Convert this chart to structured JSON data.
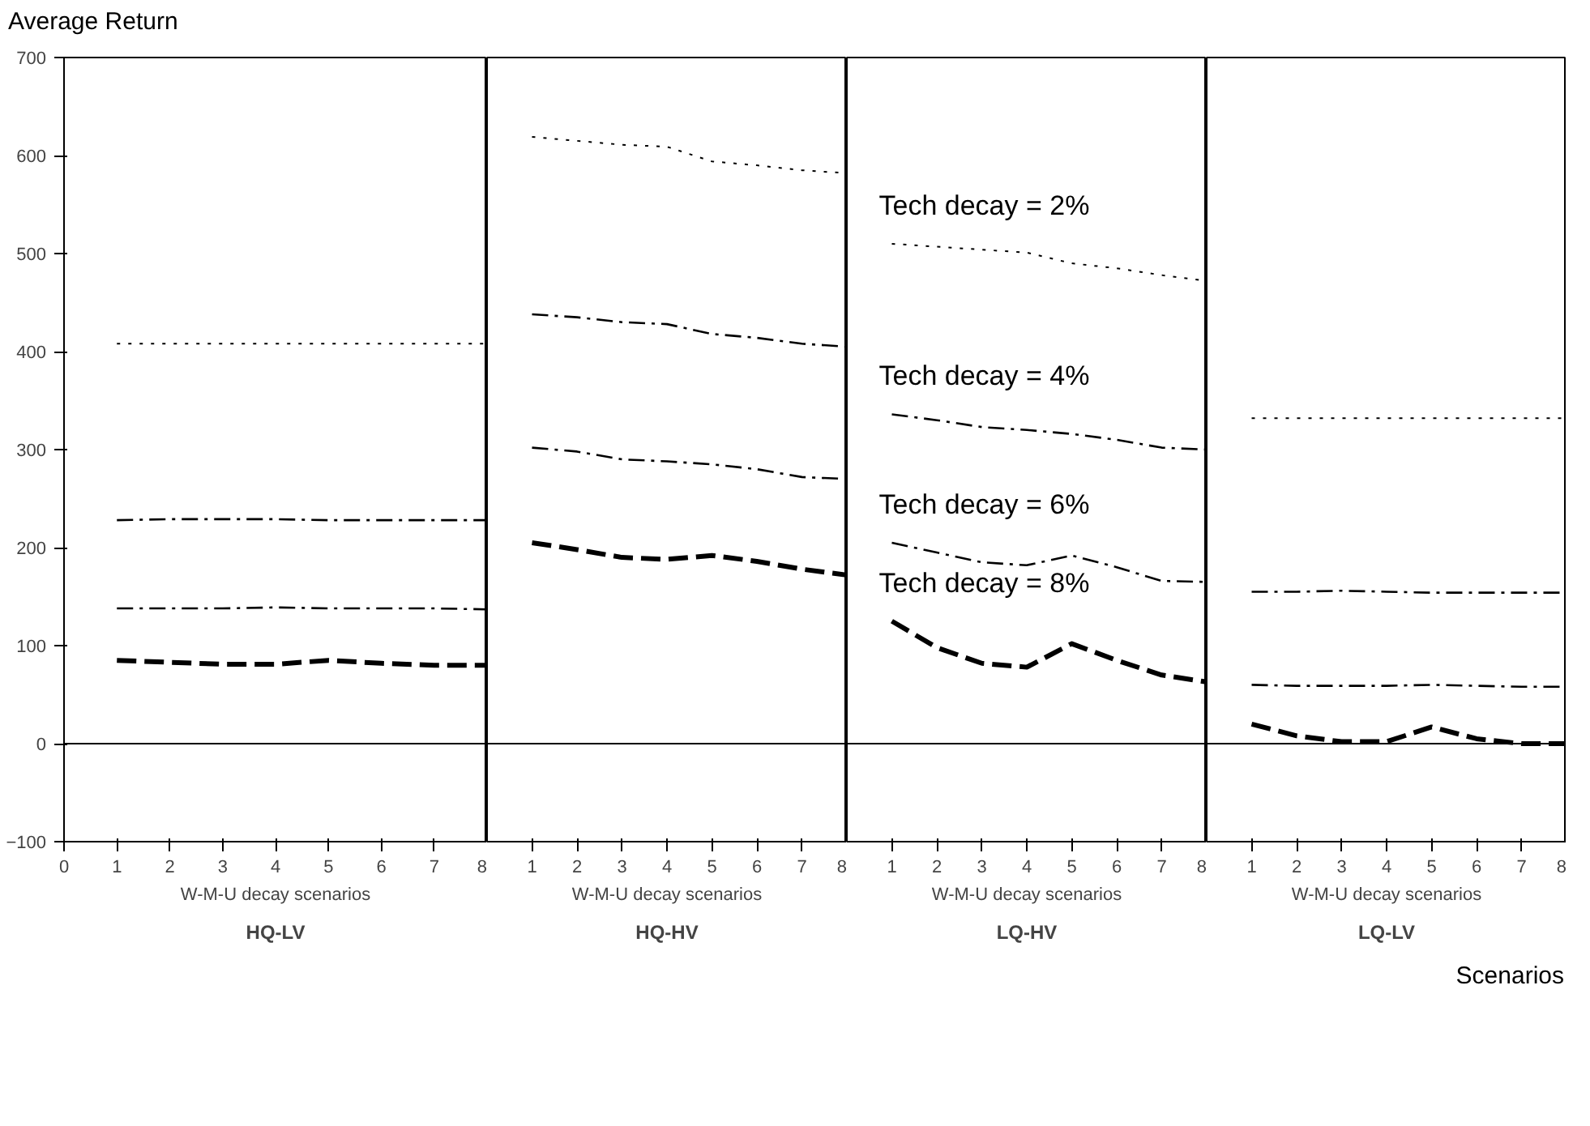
{
  "chart_data": [
    {
      "type": "line",
      "title": "HQ-LV",
      "xlabel": "W-M-U decay scenarios",
      "ylabel": "Average Return",
      "x": [
        1,
        2,
        3,
        4,
        5,
        6,
        7,
        8
      ],
      "xlim": [
        0,
        8
      ],
      "xticks": [
        0,
        1,
        2,
        3,
        4,
        5,
        6,
        7,
        8
      ],
      "ylim": [
        -100,
        700
      ],
      "yticks": [
        -100,
        0,
        100,
        200,
        300,
        400,
        500,
        600,
        700
      ],
      "grid": false,
      "ref_lines": [
        {
          "axis": "y",
          "value": 0
        }
      ],
      "series": [
        {
          "color": "#000000",
          "line_style": "dotted",
          "values": [
            408,
            408,
            408,
            408,
            408,
            408,
            408,
            408
          ]
        },
        {
          "color": "#000000",
          "line_style": "dashdot",
          "values": [
            228,
            229,
            229,
            229,
            228,
            228,
            228,
            228
          ]
        },
        {
          "color": "#000000",
          "line_style": "dashdot",
          "values": [
            138,
            138,
            138,
            139,
            138,
            138,
            138,
            137
          ]
        },
        {
          "color": "#000000",
          "line_style": "dashed",
          "values": [
            85,
            83,
            81,
            81,
            85,
            82,
            80,
            80
          ]
        }
      ]
    },
    {
      "type": "line",
      "title": "HQ-HV",
      "xlabel": "W-M-U decay scenarios",
      "x": [
        1,
        2,
        3,
        4,
        5,
        6,
        7,
        8
      ],
      "xlim": [
        0,
        8
      ],
      "xticks": [
        1,
        2,
        3,
        4,
        5,
        6,
        7,
        8
      ],
      "ylim": [
        -100,
        700
      ],
      "tick_labels": "x",
      "grid": false,
      "ref_lines": [
        {
          "axis": "y",
          "value": 0
        }
      ],
      "series": [
        {
          "color": "#000000",
          "line_style": "dotted",
          "values": [
            619,
            615,
            611,
            609,
            594,
            590,
            585,
            582
          ]
        },
        {
          "color": "#000000",
          "line_style": "dashdot",
          "values": [
            438,
            435,
            430,
            428,
            418,
            414,
            408,
            405
          ]
        },
        {
          "color": "#000000",
          "line_style": "dashdot",
          "values": [
            302,
            298,
            290,
            288,
            285,
            280,
            272,
            270
          ]
        },
        {
          "color": "#000000",
          "line_style": "dashed",
          "values": [
            205,
            198,
            190,
            188,
            192,
            186,
            178,
            172
          ]
        }
      ]
    },
    {
      "type": "line",
      "title": "LQ-HV",
      "xlabel": "W-M-U decay scenarios",
      "x": [
        1,
        2,
        3,
        4,
        5,
        6,
        7,
        8
      ],
      "xlim": [
        0,
        8
      ],
      "xticks": [
        1,
        2,
        3,
        4,
        5,
        6,
        7,
        8
      ],
      "ylim": [
        -100,
        700
      ],
      "tick_labels": "x",
      "grid": false,
      "ref_lines": [
        {
          "axis": "y",
          "value": 0
        }
      ],
      "series": [
        {
          "name": "Tech decay = 2%",
          "color": "#000000",
          "line_style": "dotted",
          "values": [
            510,
            507,
            504,
            501,
            490,
            485,
            478,
            472
          ]
        },
        {
          "name": "Tech decay = 4%",
          "color": "#000000",
          "line_style": "dashdot",
          "values": [
            336,
            330,
            323,
            320,
            316,
            310,
            302,
            300
          ]
        },
        {
          "name": "Tech decay = 6%",
          "color": "#000000",
          "line_style": "dashdot",
          "values": [
            205,
            195,
            185,
            182,
            192,
            180,
            166,
            165
          ]
        },
        {
          "name": "Tech decay = 8%",
          "color": "#000000",
          "line_style": "dashed",
          "values": [
            125,
            98,
            82,
            78,
            102,
            85,
            70,
            63
          ]
        }
      ]
    },
    {
      "type": "line",
      "title": "LQ-LV",
      "xlabel": "W-M-U decay scenarios",
      "x": [
        1,
        2,
        3,
        4,
        5,
        6,
        7,
        8
      ],
      "xlim": [
        0,
        8
      ],
      "xticks": [
        1,
        2,
        3,
        4,
        5,
        6,
        7,
        8
      ],
      "ylim": [
        -100,
        700
      ],
      "tick_labels": "x",
      "grid": false,
      "ref_lines": [
        {
          "axis": "y",
          "value": 0
        }
      ],
      "annotations": [
        "Scenarios"
      ],
      "series": [
        {
          "color": "#000000",
          "line_style": "dotted",
          "values": [
            332,
            332,
            332,
            332,
            332,
            332,
            332,
            332
          ]
        },
        {
          "color": "#000000",
          "line_style": "dashdot",
          "values": [
            155,
            155,
            156,
            155,
            154,
            154,
            154,
            154
          ]
        },
        {
          "color": "#000000",
          "line_style": "dashdot",
          "values": [
            60,
            59,
            59,
            59,
            60,
            59,
            58,
            58
          ]
        },
        {
          "color": "#000000",
          "line_style": "dashed",
          "values": [
            20,
            8,
            2,
            2,
            17,
            5,
            0,
            0
          ]
        }
      ]
    }
  ]
}
